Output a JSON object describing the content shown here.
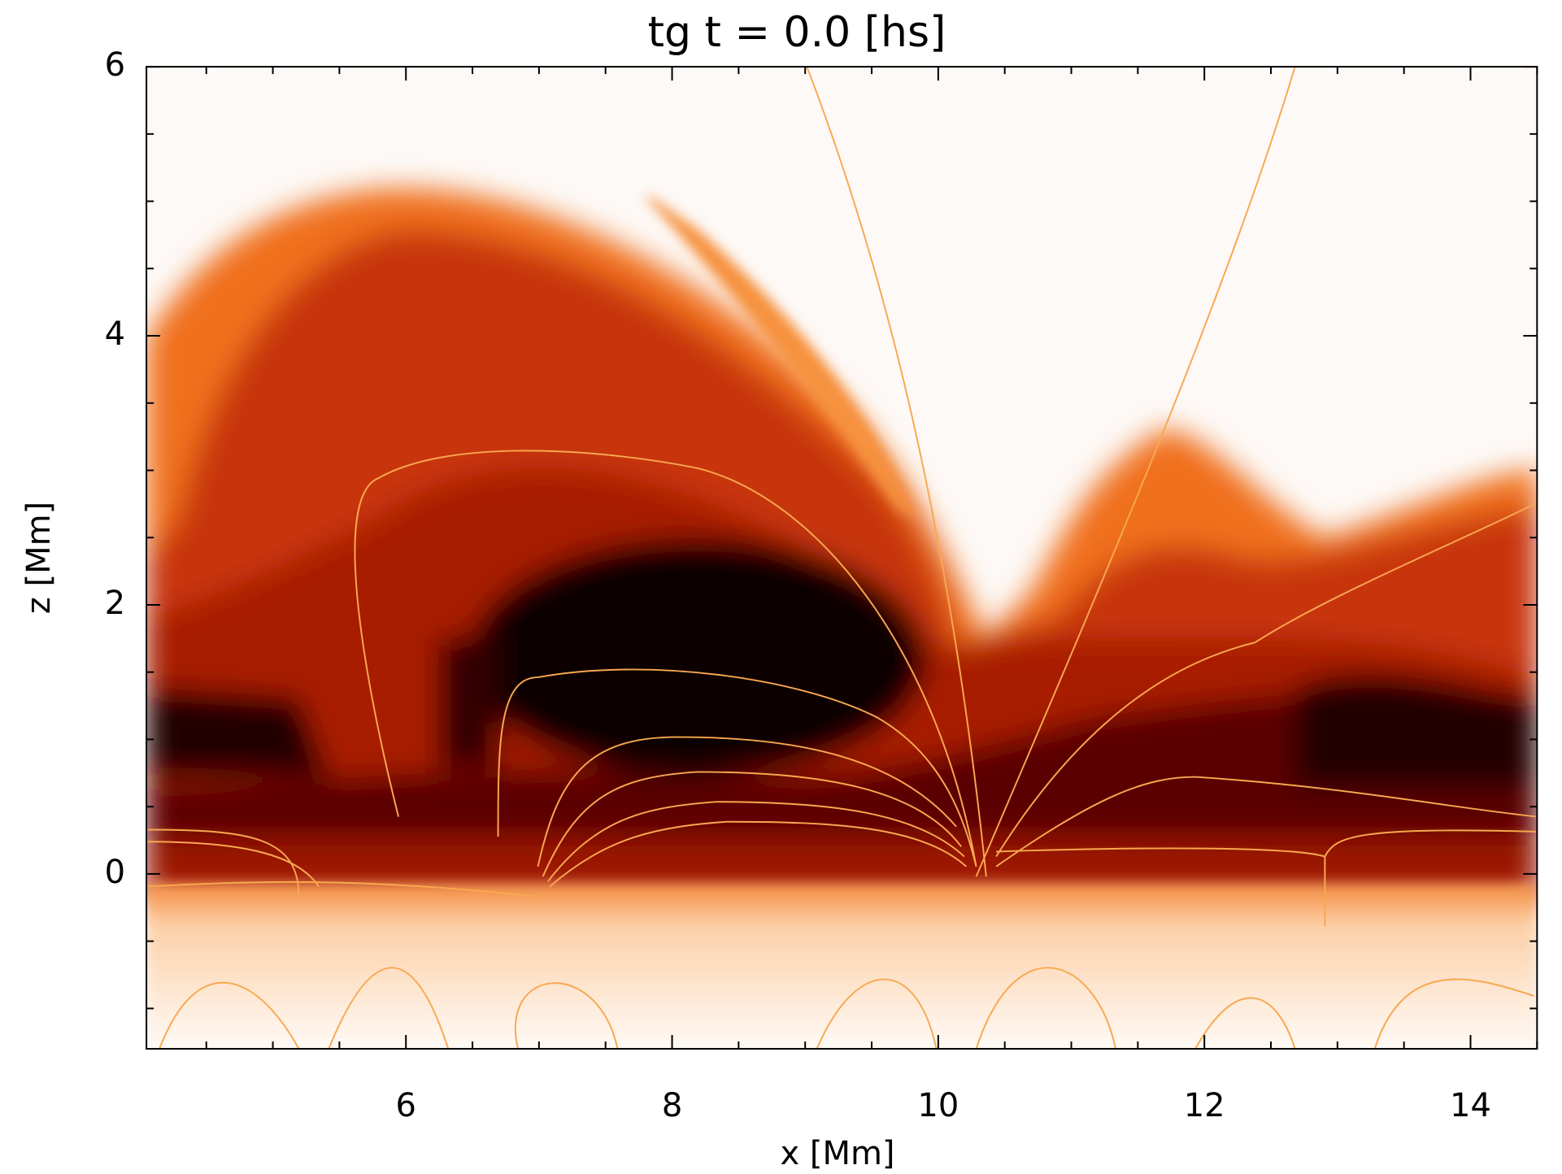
{
  "chart_data": {
    "type": "heatmap",
    "title": "tg t = 0.0 [hs]",
    "x_label": "x [Mm]",
    "y_label": "z [Mm]",
    "xlim": [
      4.05,
      14.5
    ],
    "ylim": [
      -1.3,
      6
    ],
    "xticks": [
      6,
      8,
      10,
      12,
      14
    ],
    "yticks": [
      0,
      2,
      4,
      6
    ],
    "xminorticks": [
      4.5,
      5,
      5.5,
      6.5,
      7,
      7.5,
      8.5,
      9,
      9.5,
      10.5,
      11,
      11.5,
      12.5,
      13,
      13.5,
      14.5
    ],
    "yminorticks": [
      -1,
      -0.5,
      0.5,
      1,
      1.5,
      2.5,
      3,
      3.5,
      4.5,
      5,
      5.5
    ],
    "color": "#000000"
  }
}
